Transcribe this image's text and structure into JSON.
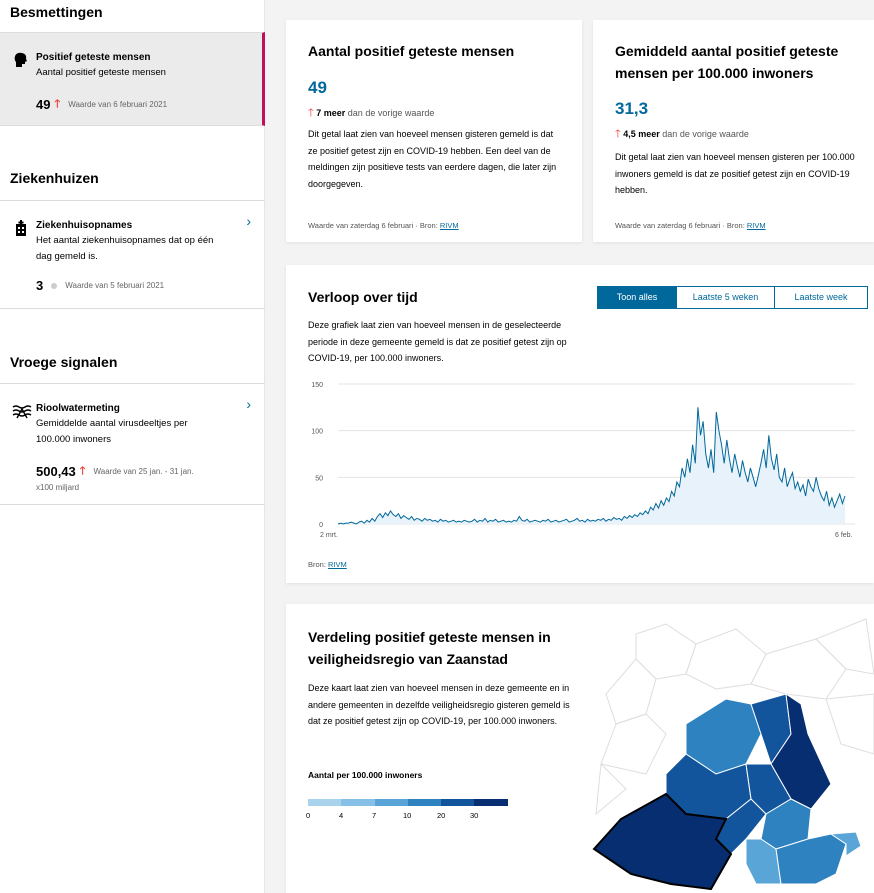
{
  "sidebar": {
    "sections": [
      {
        "title": "Besmettingen"
      },
      {
        "title": "Ziekenhuizen"
      },
      {
        "title": "Vroege signalen"
      }
    ],
    "items": [
      {
        "title": "Positief geteste mensen",
        "desc": "Aantal positief geteste mensen",
        "value": "49",
        "note": "Waarde van 6 februari 2021"
      },
      {
        "title": "Ziekenhuisopnames",
        "desc": "Het aantal ziekenhuisopnames dat op één dag gemeld is.",
        "value": "3",
        "note": "Waarde van 5 februari 2021"
      },
      {
        "title": "Rioolwatermeting",
        "desc": "Gemiddelde aantal virusdeeltjes per 100.000 inwoners",
        "value": "500,43",
        "note": "Waarde van 25 jan. - 31 jan.",
        "unit": "x100 miljard"
      }
    ]
  },
  "cards": {
    "positive": {
      "title": "Aantal positief geteste mensen",
      "value": "49",
      "delta_value": "7 meer",
      "delta_text": "dan de vorige waarde",
      "desc": "Dit getal laat zien van hoeveel mensen gisteren gemeld is dat ze positief getest zijn en COVID-19 hebben. Een deel van de meldingen zijn positieve tests van eerdere dagen, die later zijn doorgegeven.",
      "source_prefix": "Waarde van zaterdag 6 februari · Bron:",
      "source_link": "RIVM"
    },
    "per100k": {
      "title": "Gemiddeld aantal positief geteste mensen per 100.000 inwoners",
      "value": "31,3",
      "delta_value": "4,5 meer",
      "delta_text": "dan de vorige waarde",
      "desc": "Dit getal laat zien van hoeveel mensen gisteren per 100.000 inwoners gemeld is dat ze positief getest zijn en COVID-19 hebben.",
      "source_prefix": "Waarde van zaterdag 6 februari · Bron:",
      "source_link": "RIVM"
    },
    "timeline": {
      "title": "Verloop over tijd",
      "desc": "Deze grafiek laat zien van hoeveel mensen in de geselecteerde periode in deze gemeente gemeld is dat ze positief getest zijn op COVID-19, per 100.000 inwoners.",
      "buttons": [
        "Toon alles",
        "Laatste 5 weken",
        "Laatste week"
      ],
      "source_prefix": "Bron:",
      "source_link": "RIVM"
    },
    "map": {
      "title": "Verdeling positief geteste mensen in veiligheidsregio van Zaanstad",
      "desc": "Deze kaart laat zien van hoeveel mensen in deze gemeente en in andere gemeenten in dezelfde veiligheidsregio gisteren gemeld is dat ze positief getest zijn op COVID-19, per 100.000 inwoners.",
      "legend_title": "Aantal per 100.000 inwoners",
      "legend_ticks": [
        "0",
        "4",
        "7",
        "10",
        "20",
        "30"
      ],
      "legend_colors": [
        "#a9d2ec",
        "#86c0e6",
        "#5aa5d8",
        "#2f82c0",
        "#13559c",
        "#072e70"
      ]
    }
  },
  "chart_data": {
    "type": "area",
    "title": "Verloop over tijd",
    "xlabel": "",
    "ylabel": "",
    "ylim": [
      0,
      150
    ],
    "yticks": [
      "0",
      "50",
      "100",
      "150"
    ],
    "x_start_label": "2 mrt.",
    "x_end_label": "6 feb.",
    "series": [
      {
        "name": "Positief geteste mensen per 100.000 inwoners",
        "values": [
          0,
          1,
          0,
          1,
          1,
          2,
          1,
          0,
          2,
          3,
          1,
          4,
          2,
          6,
          3,
          8,
          11,
          7,
          12,
          9,
          14,
          10,
          8,
          11,
          6,
          9,
          7,
          5,
          8,
          4,
          6,
          5,
          3,
          6,
          4,
          5,
          3,
          4,
          2,
          5,
          3,
          4,
          2,
          3,
          4,
          2,
          3,
          2,
          4,
          3,
          2,
          3,
          5,
          2,
          4,
          3,
          6,
          2,
          4,
          3,
          5,
          2,
          3,
          4,
          2,
          3,
          2,
          4,
          3,
          8,
          4,
          3,
          5,
          2,
          3,
          4,
          3,
          2,
          4,
          3,
          5,
          2,
          3,
          4,
          2,
          3,
          4,
          5,
          2,
          3,
          4,
          6,
          3,
          4,
          2,
          5,
          3,
          4,
          3,
          5,
          4,
          6,
          3,
          5,
          4,
          7,
          5,
          6,
          4,
          8,
          6,
          9,
          7,
          10,
          8,
          12,
          10,
          14,
          11,
          18,
          15,
          22,
          17,
          25,
          20,
          28,
          24,
          35,
          30,
          45,
          40,
          60,
          50,
          70,
          55,
          85,
          65,
          125,
          95,
          110,
          75,
          60,
          80,
          55,
          120,
          100,
          85,
          65,
          90,
          70,
          55,
          75,
          62,
          50,
          68,
          55,
          45,
          60,
          50,
          40,
          52,
          65,
          80,
          60,
          95,
          70,
          58,
          75,
          50,
          45,
          60,
          40,
          48,
          55,
          38,
          45,
          35,
          42,
          30,
          48,
          40,
          35,
          50,
          38,
          30,
          25,
          35,
          20,
          28,
          18,
          25,
          32,
          22,
          30
        ]
      }
    ]
  }
}
